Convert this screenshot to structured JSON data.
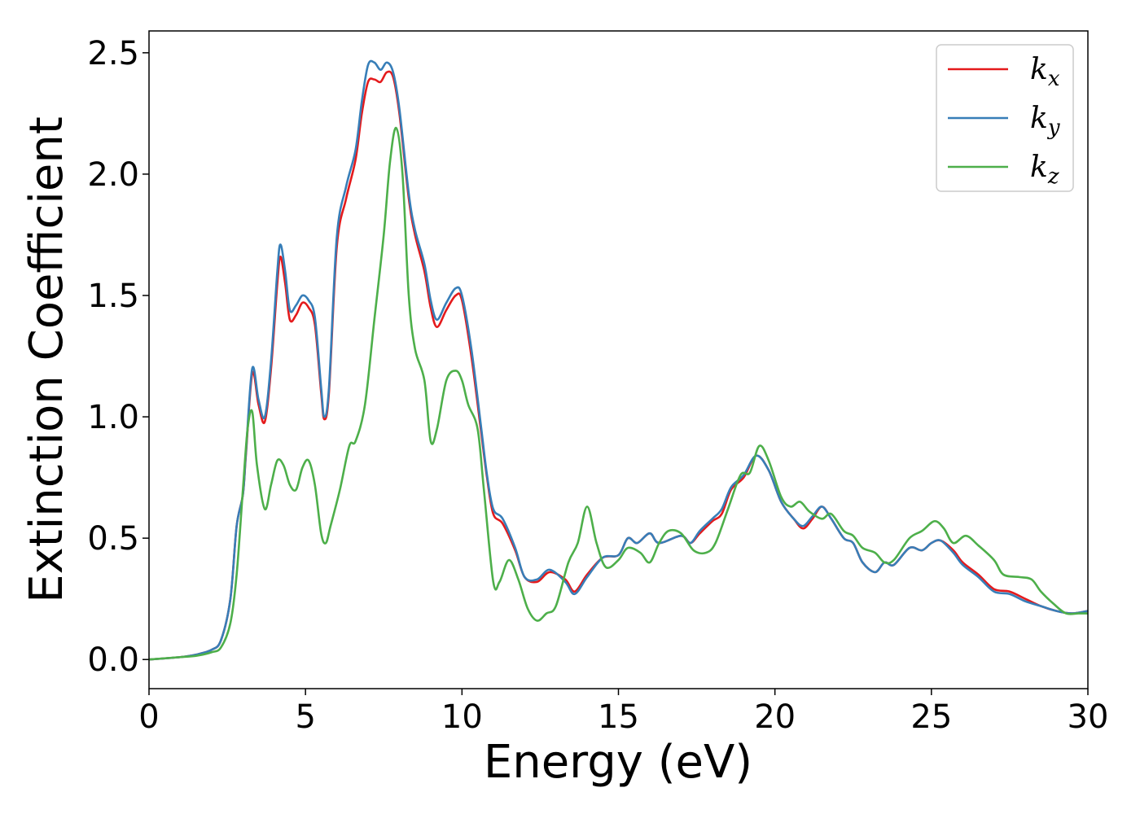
{
  "chart_data": {
    "type": "line",
    "xlabel": "Energy (eV)",
    "ylabel": "Extinction Coefficient",
    "xlim": [
      0,
      30
    ],
    "ylim": [
      -0.12,
      2.59
    ],
    "xticks": [
      0,
      5,
      10,
      15,
      20,
      25,
      30
    ],
    "yticks": [
      0.0,
      0.5,
      1.0,
      1.5,
      2.0,
      2.5
    ],
    "xtick_labels": [
      "0",
      "5",
      "10",
      "15",
      "20",
      "25",
      "30"
    ],
    "ytick_labels": [
      "0.0",
      "0.5",
      "1.0",
      "1.5",
      "2.0",
      "2.5"
    ],
    "grid": false,
    "legend_position": "top-right",
    "series": [
      {
        "name": "k_x",
        "label_base": "k",
        "label_sub": "x",
        "color": "#e41a1c",
        "points": [
          [
            0,
            0
          ],
          [
            1,
            0.01
          ],
          [
            1.5,
            0.02
          ],
          [
            2,
            0.04
          ],
          [
            2.3,
            0.08
          ],
          [
            2.6,
            0.25
          ],
          [
            2.8,
            0.55
          ],
          [
            3.0,
            0.68
          ],
          [
            3.1,
            0.85
          ],
          [
            3.3,
            1.18
          ],
          [
            3.5,
            1.05
          ],
          [
            3.7,
            0.98
          ],
          [
            3.9,
            1.2
          ],
          [
            4.1,
            1.55
          ],
          [
            4.2,
            1.66
          ],
          [
            4.35,
            1.55
          ],
          [
            4.5,
            1.4
          ],
          [
            4.7,
            1.42
          ],
          [
            4.9,
            1.47
          ],
          [
            5.1,
            1.45
          ],
          [
            5.3,
            1.38
          ],
          [
            5.5,
            1.1
          ],
          [
            5.6,
            0.99
          ],
          [
            5.75,
            1.1
          ],
          [
            6.0,
            1.7
          ],
          [
            6.3,
            1.9
          ],
          [
            6.6,
            2.06
          ],
          [
            6.8,
            2.25
          ],
          [
            7.0,
            2.38
          ],
          [
            7.2,
            2.39
          ],
          [
            7.4,
            2.38
          ],
          [
            7.6,
            2.42
          ],
          [
            7.8,
            2.4
          ],
          [
            8.0,
            2.25
          ],
          [
            8.3,
            1.9
          ],
          [
            8.5,
            1.75
          ],
          [
            8.8,
            1.6
          ],
          [
            9.0,
            1.45
          ],
          [
            9.2,
            1.37
          ],
          [
            9.5,
            1.44
          ],
          [
            9.8,
            1.5
          ],
          [
            10.0,
            1.48
          ],
          [
            10.3,
            1.25
          ],
          [
            10.6,
            0.95
          ],
          [
            10.8,
            0.75
          ],
          [
            11.0,
            0.6
          ],
          [
            11.3,
            0.56
          ],
          [
            11.7,
            0.45
          ],
          [
            12.0,
            0.34
          ],
          [
            12.4,
            0.32
          ],
          [
            12.8,
            0.36
          ],
          [
            13.3,
            0.33
          ],
          [
            13.6,
            0.28
          ],
          [
            14.0,
            0.35
          ],
          [
            14.5,
            0.42
          ],
          [
            15.0,
            0.43
          ],
          [
            15.3,
            0.5
          ],
          [
            15.6,
            0.48
          ],
          [
            16.0,
            0.52
          ],
          [
            16.3,
            0.48
          ],
          [
            17.0,
            0.51
          ],
          [
            17.3,
            0.48
          ],
          [
            17.6,
            0.52
          ],
          [
            18.0,
            0.57
          ],
          [
            18.3,
            0.6
          ],
          [
            18.6,
            0.7
          ],
          [
            19.0,
            0.75
          ],
          [
            19.4,
            0.84
          ],
          [
            19.8,
            0.78
          ],
          [
            20.2,
            0.65
          ],
          [
            20.6,
            0.58
          ],
          [
            20.9,
            0.54
          ],
          [
            21.2,
            0.58
          ],
          [
            21.5,
            0.63
          ],
          [
            21.8,
            0.58
          ],
          [
            22.2,
            0.5
          ],
          [
            22.5,
            0.48
          ],
          [
            22.8,
            0.4
          ],
          [
            23.2,
            0.36
          ],
          [
            23.5,
            0.4
          ],
          [
            23.8,
            0.39
          ],
          [
            24.3,
            0.46
          ],
          [
            24.7,
            0.45
          ],
          [
            25.0,
            0.48
          ],
          [
            25.3,
            0.49
          ],
          [
            25.7,
            0.45
          ],
          [
            26.0,
            0.4
          ],
          [
            26.5,
            0.35
          ],
          [
            27.0,
            0.29
          ],
          [
            27.5,
            0.28
          ],
          [
            28.0,
            0.25
          ],
          [
            28.5,
            0.22
          ],
          [
            29.0,
            0.2
          ],
          [
            29.5,
            0.19
          ],
          [
            30.0,
            0.2
          ]
        ]
      },
      {
        "name": "k_y",
        "label_base": "k",
        "label_sub": "y",
        "color": "#377eb8",
        "points": [
          [
            0,
            0
          ],
          [
            1,
            0.01
          ],
          [
            1.5,
            0.02
          ],
          [
            2,
            0.04
          ],
          [
            2.3,
            0.08
          ],
          [
            2.6,
            0.25
          ],
          [
            2.8,
            0.55
          ],
          [
            3.0,
            0.68
          ],
          [
            3.1,
            0.86
          ],
          [
            3.3,
            1.2
          ],
          [
            3.5,
            1.07
          ],
          [
            3.7,
            1.0
          ],
          [
            3.9,
            1.23
          ],
          [
            4.1,
            1.6
          ],
          [
            4.2,
            1.71
          ],
          [
            4.35,
            1.6
          ],
          [
            4.5,
            1.44
          ],
          [
            4.7,
            1.46
          ],
          [
            4.9,
            1.5
          ],
          [
            5.1,
            1.48
          ],
          [
            5.3,
            1.41
          ],
          [
            5.5,
            1.12
          ],
          [
            5.6,
            1.0
          ],
          [
            5.75,
            1.12
          ],
          [
            6.0,
            1.74
          ],
          [
            6.3,
            1.95
          ],
          [
            6.6,
            2.1
          ],
          [
            6.8,
            2.3
          ],
          [
            7.0,
            2.45
          ],
          [
            7.2,
            2.46
          ],
          [
            7.4,
            2.43
          ],
          [
            7.6,
            2.46
          ],
          [
            7.8,
            2.42
          ],
          [
            8.0,
            2.27
          ],
          [
            8.3,
            1.92
          ],
          [
            8.5,
            1.77
          ],
          [
            8.8,
            1.63
          ],
          [
            9.0,
            1.48
          ],
          [
            9.2,
            1.4
          ],
          [
            9.5,
            1.47
          ],
          [
            9.8,
            1.53
          ],
          [
            10.0,
            1.5
          ],
          [
            10.3,
            1.28
          ],
          [
            10.6,
            0.97
          ],
          [
            10.8,
            0.76
          ],
          [
            11.0,
            0.62
          ],
          [
            11.3,
            0.58
          ],
          [
            11.7,
            0.46
          ],
          [
            12.0,
            0.34
          ],
          [
            12.4,
            0.33
          ],
          [
            12.8,
            0.37
          ],
          [
            13.3,
            0.32
          ],
          [
            13.6,
            0.27
          ],
          [
            14.0,
            0.34
          ],
          [
            14.5,
            0.42
          ],
          [
            15.0,
            0.43
          ],
          [
            15.3,
            0.5
          ],
          [
            15.6,
            0.48
          ],
          [
            16.0,
            0.52
          ],
          [
            16.3,
            0.48
          ],
          [
            17.0,
            0.51
          ],
          [
            17.3,
            0.48
          ],
          [
            17.6,
            0.53
          ],
          [
            18.0,
            0.58
          ],
          [
            18.3,
            0.62
          ],
          [
            18.6,
            0.71
          ],
          [
            19.0,
            0.76
          ],
          [
            19.4,
            0.84
          ],
          [
            19.8,
            0.78
          ],
          [
            20.2,
            0.65
          ],
          [
            20.6,
            0.58
          ],
          [
            20.9,
            0.55
          ],
          [
            21.2,
            0.59
          ],
          [
            21.5,
            0.63
          ],
          [
            21.8,
            0.58
          ],
          [
            22.2,
            0.5
          ],
          [
            22.5,
            0.48
          ],
          [
            22.8,
            0.4
          ],
          [
            23.2,
            0.36
          ],
          [
            23.5,
            0.4
          ],
          [
            23.8,
            0.39
          ],
          [
            24.3,
            0.46
          ],
          [
            24.7,
            0.45
          ],
          [
            25.0,
            0.48
          ],
          [
            25.3,
            0.49
          ],
          [
            25.7,
            0.44
          ],
          [
            26.0,
            0.39
          ],
          [
            26.5,
            0.34
          ],
          [
            27.0,
            0.28
          ],
          [
            27.5,
            0.27
          ],
          [
            28.0,
            0.24
          ],
          [
            28.5,
            0.22
          ],
          [
            29.0,
            0.2
          ],
          [
            29.5,
            0.19
          ],
          [
            30.0,
            0.2
          ]
        ]
      },
      {
        "name": "k_z",
        "label_base": "k",
        "label_sub": "z",
        "color": "#4daf4a",
        "points": [
          [
            0,
            0
          ],
          [
            1,
            0.01
          ],
          [
            1.5,
            0.015
          ],
          [
            2,
            0.03
          ],
          [
            2.3,
            0.05
          ],
          [
            2.6,
            0.15
          ],
          [
            2.8,
            0.35
          ],
          [
            3.0,
            0.7
          ],
          [
            3.15,
            0.95
          ],
          [
            3.3,
            1.02
          ],
          [
            3.45,
            0.8
          ],
          [
            3.7,
            0.62
          ],
          [
            3.9,
            0.72
          ],
          [
            4.1,
            0.82
          ],
          [
            4.3,
            0.8
          ],
          [
            4.5,
            0.72
          ],
          [
            4.7,
            0.7
          ],
          [
            4.9,
            0.79
          ],
          [
            5.1,
            0.82
          ],
          [
            5.3,
            0.72
          ],
          [
            5.5,
            0.52
          ],
          [
            5.65,
            0.48
          ],
          [
            5.8,
            0.55
          ],
          [
            6.1,
            0.7
          ],
          [
            6.4,
            0.88
          ],
          [
            6.6,
            0.9
          ],
          [
            6.9,
            1.05
          ],
          [
            7.2,
            1.4
          ],
          [
            7.5,
            1.75
          ],
          [
            7.7,
            2.05
          ],
          [
            7.9,
            2.19
          ],
          [
            8.1,
            2.0
          ],
          [
            8.3,
            1.5
          ],
          [
            8.5,
            1.28
          ],
          [
            8.8,
            1.15
          ],
          [
            9.0,
            0.9
          ],
          [
            9.2,
            0.95
          ],
          [
            9.5,
            1.15
          ],
          [
            9.8,
            1.19
          ],
          [
            10.0,
            1.15
          ],
          [
            10.2,
            1.05
          ],
          [
            10.5,
            0.95
          ],
          [
            10.7,
            0.7
          ],
          [
            11.0,
            0.32
          ],
          [
            11.2,
            0.32
          ],
          [
            11.5,
            0.41
          ],
          [
            11.8,
            0.33
          ],
          [
            12.1,
            0.21
          ],
          [
            12.4,
            0.16
          ],
          [
            12.7,
            0.19
          ],
          [
            13.0,
            0.22
          ],
          [
            13.4,
            0.4
          ],
          [
            13.7,
            0.48
          ],
          [
            14.0,
            0.63
          ],
          [
            14.3,
            0.48
          ],
          [
            14.6,
            0.38
          ],
          [
            15.0,
            0.41
          ],
          [
            15.3,
            0.46
          ],
          [
            15.7,
            0.44
          ],
          [
            16.0,
            0.4
          ],
          [
            16.3,
            0.48
          ],
          [
            16.6,
            0.53
          ],
          [
            17.0,
            0.52
          ],
          [
            17.4,
            0.45
          ],
          [
            17.8,
            0.44
          ],
          [
            18.1,
            0.48
          ],
          [
            18.5,
            0.62
          ],
          [
            18.9,
            0.76
          ],
          [
            19.2,
            0.77
          ],
          [
            19.5,
            0.88
          ],
          [
            19.8,
            0.82
          ],
          [
            20.2,
            0.67
          ],
          [
            20.5,
            0.63
          ],
          [
            20.8,
            0.65
          ],
          [
            21.1,
            0.61
          ],
          [
            21.5,
            0.58
          ],
          [
            21.8,
            0.6
          ],
          [
            22.2,
            0.53
          ],
          [
            22.5,
            0.51
          ],
          [
            22.8,
            0.46
          ],
          [
            23.2,
            0.44
          ],
          [
            23.5,
            0.4
          ],
          [
            23.8,
            0.41
          ],
          [
            24.3,
            0.5
          ],
          [
            24.7,
            0.53
          ],
          [
            25.1,
            0.57
          ],
          [
            25.4,
            0.54
          ],
          [
            25.7,
            0.48
          ],
          [
            26.1,
            0.51
          ],
          [
            26.5,
            0.47
          ],
          [
            27.0,
            0.41
          ],
          [
            27.3,
            0.35
          ],
          [
            27.8,
            0.34
          ],
          [
            28.2,
            0.33
          ],
          [
            28.5,
            0.28
          ],
          [
            28.9,
            0.23
          ],
          [
            29.3,
            0.19
          ],
          [
            29.7,
            0.19
          ],
          [
            30.0,
            0.19
          ]
        ]
      }
    ]
  }
}
